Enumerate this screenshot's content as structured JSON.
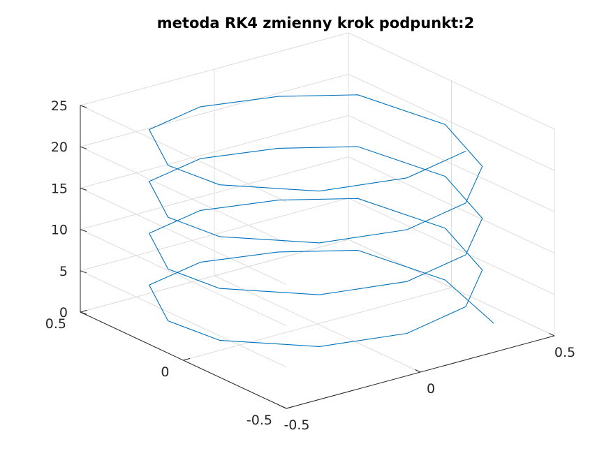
{
  "chart_data": {
    "type": "line3d",
    "title": "metoda RK4 zmienny krok podpunkt:2",
    "xlabel": "",
    "ylabel": "",
    "zlabel": "",
    "xlim": [
      -0.5,
      0.5
    ],
    "ylim": [
      -0.5,
      0.5
    ],
    "zlim": [
      0,
      25
    ],
    "x_ticks": [
      -0.5,
      0,
      0.5
    ],
    "x_tick_labels": [
      "-0.5",
      "0",
      "0.5"
    ],
    "y_ticks": [
      -0.5,
      0,
      0.5
    ],
    "y_tick_labels": [
      "-0.5",
      "0",
      "0.5"
    ],
    "z_ticks": [
      0,
      5,
      10,
      15,
      20,
      25
    ],
    "z_tick_labels": [
      "0",
      "5",
      "10",
      "15",
      "20",
      "25"
    ],
    "grid": true,
    "box": false,
    "color": "#0072bd",
    "series": [
      {
        "x": [
          0.42,
          0.5,
          0.42,
          0.2,
          -0.06,
          -0.32,
          -0.48,
          -0.48,
          -0.3,
          -0.05,
          0.2,
          0.4,
          0.5,
          0.42,
          0.2,
          -0.06,
          -0.32,
          -0.48,
          -0.48,
          -0.3,
          -0.05,
          0.2,
          0.4,
          0.5,
          0.42,
          0.2,
          -0.06,
          -0.32,
          -0.48,
          -0.48,
          -0.3,
          -0.05,
          0.2,
          0.4,
          0.5,
          0.42,
          0.2,
          -0.06,
          -0.32,
          -0.48,
          -0.48,
          -0.3,
          -0.05,
          0.2
        ],
        "y": [
          -0.31,
          0.03,
          0.35,
          0.45,
          0.49,
          0.4,
          0.1,
          -0.15,
          -0.4,
          -0.5,
          -0.46,
          -0.28,
          0.03,
          0.35,
          0.45,
          0.49,
          0.4,
          0.1,
          -0.15,
          -0.4,
          -0.5,
          -0.46,
          -0.28,
          0.03,
          0.35,
          0.45,
          0.49,
          0.4,
          0.1,
          -0.15,
          -0.4,
          -0.5,
          -0.46,
          -0.28,
          0.03,
          0.35,
          0.45,
          0.49,
          0.4,
          0.1,
          -0.15,
          -0.4,
          -0.5,
          -0.46
        ],
        "z": [
          0,
          0.57,
          1.14,
          1.71,
          2.28,
          2.85,
          3.42,
          3.99,
          4.56,
          5.13,
          5.7,
          6.27,
          6.84,
          7.41,
          7.98,
          8.55,
          9.12,
          9.69,
          10.26,
          10.83,
          11.4,
          11.97,
          12.54,
          13.11,
          13.68,
          14.25,
          14.82,
          15.39,
          15.96,
          16.53,
          17.1,
          17.67,
          18.24,
          18.81,
          19.38,
          19.95,
          20.52,
          21.09,
          21.66,
          22.23,
          22.8,
          23.37,
          23.94,
          24.51
        ]
      }
    ]
  }
}
